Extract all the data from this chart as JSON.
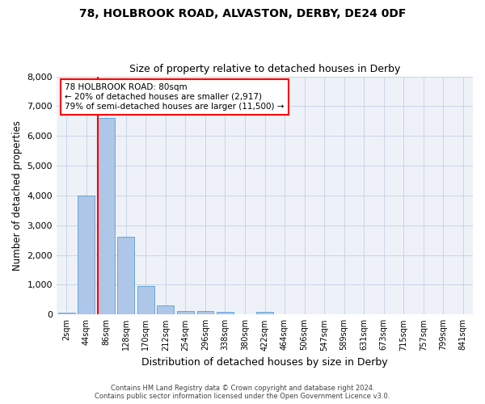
{
  "title1": "78, HOLBROOK ROAD, ALVASTON, DERBY, DE24 0DF",
  "title2": "Size of property relative to detached houses in Derby",
  "xlabel": "Distribution of detached houses by size in Derby",
  "ylabel": "Number of detached properties",
  "annotation_line1": "78 HOLBROOK ROAD: 80sqm",
  "annotation_line2": "← 20% of detached houses are smaller (2,917)",
  "annotation_line3": "79% of semi-detached houses are larger (11,500) →",
  "footer1": "Contains HM Land Registry data © Crown copyright and database right 2024.",
  "footer2": "Contains public sector information licensed under the Open Government Licence v3.0.",
  "bar_labels": [
    "2sqm",
    "44sqm",
    "86sqm",
    "128sqm",
    "170sqm",
    "212sqm",
    "254sqm",
    "296sqm",
    "338sqm",
    "380sqm",
    "422sqm",
    "464sqm",
    "506sqm",
    "547sqm",
    "589sqm",
    "631sqm",
    "673sqm",
    "715sqm",
    "757sqm",
    "799sqm",
    "841sqm"
  ],
  "bar_values": [
    70,
    4000,
    6600,
    2620,
    950,
    300,
    130,
    110,
    80,
    0,
    80,
    0,
    0,
    0,
    0,
    0,
    0,
    0,
    0,
    0,
    0
  ],
  "bar_color": "#aec6e8",
  "bar_edge_color": "#5a9fd4",
  "highlight_color": "red",
  "ylim": [
    0,
    8000
  ],
  "grid_color": "#c8d4e8",
  "background_color": "#eef2f8",
  "plot_bg_color": "#eef2f8"
}
